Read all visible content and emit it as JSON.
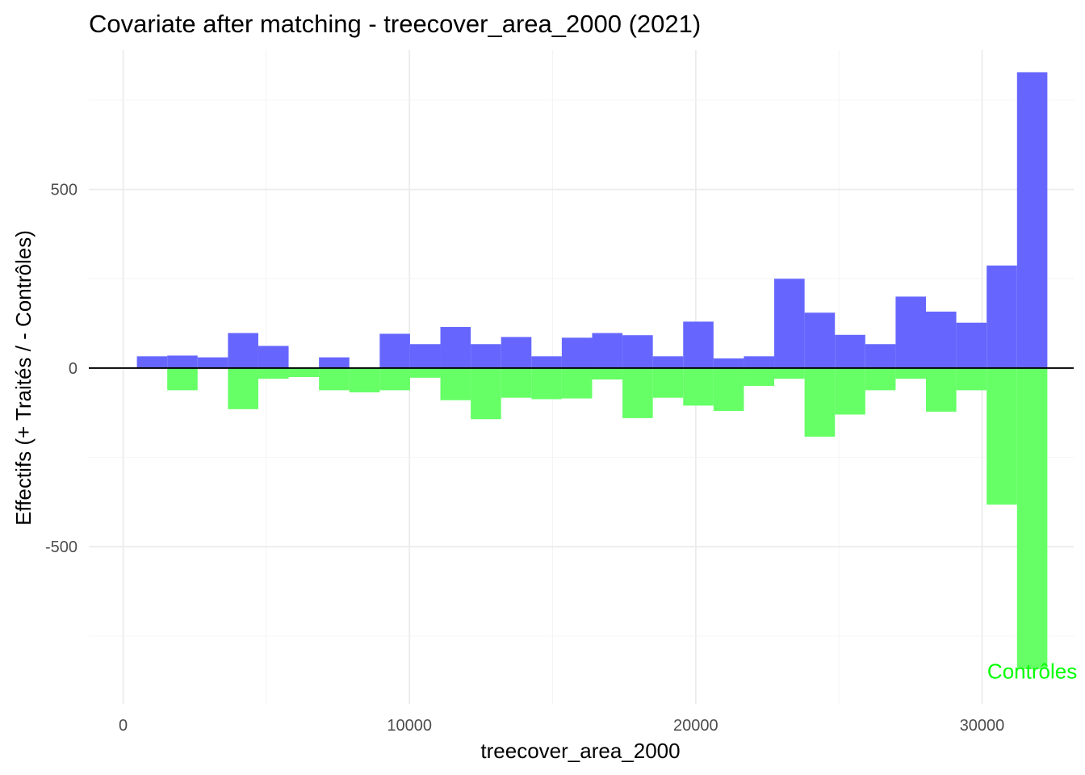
{
  "chart_data": {
    "type": "bar",
    "title": "Covariate after matching - treecover_area_2000 (2021)",
    "xlabel": "treecover_area_2000",
    "ylabel": "Effectifs (+ Traités / - Contrôles)",
    "xlim": [
      -1200,
      33200
    ],
    "ylim": [
      -940,
      890
    ],
    "x_ticks": [
      0,
      10000,
      20000,
      30000
    ],
    "x_tick_labels": [
      "0",
      "10000",
      "20000",
      "30000"
    ],
    "y_ticks": [
      -500,
      0,
      500
    ],
    "y_tick_labels": [
      "-500",
      "0",
      "500"
    ],
    "grid": true,
    "bin_width": 1060,
    "x": [
      1010,
      2070,
      3130,
      4190,
      5250,
      6310,
      7370,
      8430,
      9490,
      10550,
      11610,
      12670,
      13730,
      14790,
      15850,
      16910,
      17970,
      19030,
      20090,
      21150,
      22210,
      23270,
      24330,
      25390,
      26450,
      27510,
      28570,
      29630,
      30690,
      31750
    ],
    "series": [
      {
        "name": "Traités",
        "color": "#6666ff",
        "values": [
          33,
          35,
          30,
          98,
          62,
          0,
          30,
          0,
          96,
          67,
          115,
          67,
          87,
          33,
          85,
          98,
          92,
          33,
          130,
          27,
          33,
          250,
          155,
          93,
          67,
          200,
          158,
          127,
          287,
          828
        ]
      },
      {
        "name": "Contrôles",
        "color": "#66ff66",
        "values": [
          0,
          -62,
          0,
          -115,
          -30,
          -25,
          -62,
          -68,
          -62,
          -27,
          -90,
          -143,
          -83,
          -87,
          -85,
          -32,
          -140,
          -83,
          -105,
          -120,
          -50,
          -30,
          -192,
          -130,
          -62,
          -30,
          -122,
          -62,
          -382,
          -842
        ]
      }
    ],
    "annotation": {
      "text": "Contrôles",
      "x": 31750,
      "y": -848,
      "color": "#00ff00"
    },
    "zero_line_color": "#000000"
  }
}
